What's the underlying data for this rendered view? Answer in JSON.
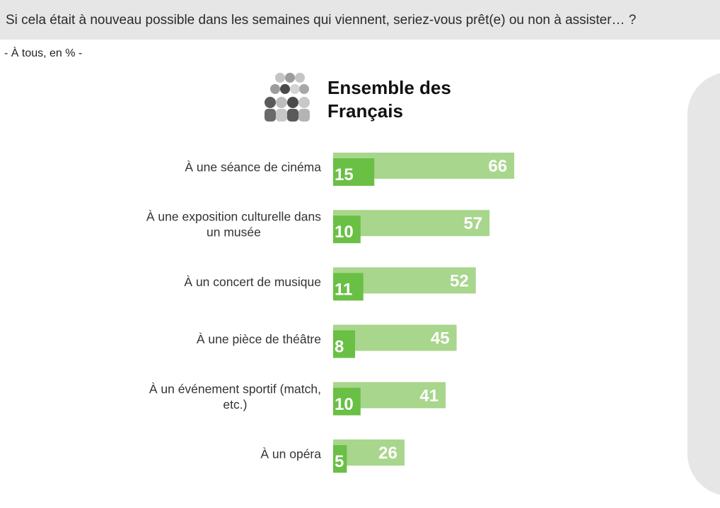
{
  "header": {
    "question": "Si cela était à nouveau possible dans les semaines qui viennent, seriez-vous prêt(e) ou non à assister… ?"
  },
  "subtitle": "- À tous, en % -",
  "chart_data": {
    "type": "bar",
    "orientation": "horizontal",
    "title": "Ensemble des Français",
    "categories": [
      "À une séance de cinéma",
      "À une exposition culturelle dans un musée",
      "À un concert de musique",
      "À une pièce de théâtre",
      "À un événement sportif (match, etc.)",
      "À un opéra"
    ],
    "series": [
      {
        "values": [
          66,
          57,
          52,
          45,
          41,
          26
        ],
        "color": "#a8d68c"
      },
      {
        "values": [
          15,
          10,
          11,
          8,
          10,
          5
        ],
        "color": "#6abf45"
      }
    ],
    "value_color": "#ffffff",
    "grid": false
  }
}
